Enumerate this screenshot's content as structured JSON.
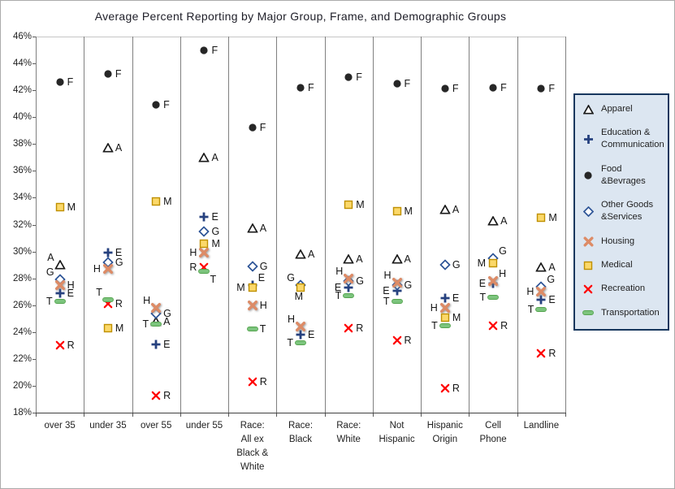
{
  "chart_data": {
    "type": "scatter",
    "title": "Average Percent Reporting by Major Group, Frame, and  Demographic Groups",
    "xlabel": "",
    "ylabel": "",
    "ylim": [
      18,
      46
    ],
    "ytick_step": 2,
    "ytick_suffix": "%",
    "ytick_labels": [
      "46%",
      "44%",
      "42%",
      "40%",
      "38%",
      "36%",
      "34%",
      "32%",
      "30%",
      "28%",
      "26%",
      "24%",
      "22%",
      "20%",
      "18%"
    ],
    "grid": "vertical category separators only",
    "legend_position": "right",
    "categories": [
      {
        "label": "over 35",
        "lines": [
          "over 35"
        ]
      },
      {
        "label": "under 35",
        "lines": [
          "under 35"
        ]
      },
      {
        "label": "over 55",
        "lines": [
          "over 55"
        ]
      },
      {
        "label": "under 55",
        "lines": [
          "under 55"
        ]
      },
      {
        "label": "Race: All ex Black & White",
        "lines": [
          "Race:",
          "All ex",
          "Black &",
          "White"
        ]
      },
      {
        "label": "Race: Black",
        "lines": [
          "Race:",
          "Black"
        ]
      },
      {
        "label": "Race: White",
        "lines": [
          "Race:",
          "White"
        ]
      },
      {
        "label": "Not Hispanic",
        "lines": [
          "Not",
          "Hispanic"
        ]
      },
      {
        "label": "Hispanic Origin",
        "lines": [
          "Hispanic",
          "Origin"
        ]
      },
      {
        "label": "Cell Phone",
        "lines": [
          "Cell",
          "Phone"
        ]
      },
      {
        "label": "Landline",
        "lines": [
          "Landline"
        ]
      }
    ],
    "series": [
      {
        "name": "Apparel",
        "letter": "A",
        "marker": "open-triangle",
        "color": "#1A1A1A",
        "fill": "#FFFFFF",
        "values": [
          29.0,
          37.7,
          24.8,
          37.0,
          31.7,
          29.8,
          29.4,
          29.4,
          33.1,
          32.3,
          28.8
        ],
        "label_sides": [
          "al",
          "r",
          "r",
          "r",
          "r",
          "r",
          "r",
          "r",
          "r",
          "r",
          "r"
        ]
      },
      {
        "name": "Education & Communication",
        "letter": "E",
        "marker": "plus",
        "color": "#26417F",
        "values": [
          26.9,
          29.9,
          23.1,
          32.6,
          27.5,
          23.8,
          27.3,
          27.1,
          26.5,
          27.6,
          26.4
        ],
        "label_sides": [
          "r",
          "r",
          "r",
          "r",
          "ar",
          "r",
          "l",
          "l",
          "r",
          "l",
          "r"
        ]
      },
      {
        "name": "Food &Bevrages",
        "letter": "F",
        "marker": "filled-circle",
        "color": "#262626",
        "values": [
          42.6,
          43.2,
          40.9,
          45.0,
          39.2,
          42.2,
          43.0,
          42.5,
          42.1,
          42.2,
          42.1
        ],
        "label_sides": [
          "r",
          "r",
          "r",
          "r",
          "r",
          "r",
          "r",
          "r",
          "r",
          "r",
          "r"
        ]
      },
      {
        "name": "Other Goods &Services",
        "letter": "G",
        "marker": "open-diamond",
        "color": "#2E5597",
        "fill": "#FFFFFF",
        "values": [
          27.9,
          29.2,
          25.4,
          31.5,
          28.9,
          27.5,
          27.8,
          27.5,
          29.0,
          29.5,
          27.4
        ],
        "label_sides": [
          "al",
          "r",
          "r",
          "r",
          "r",
          "al",
          "r",
          "r",
          "r",
          "ar",
          "ar"
        ]
      },
      {
        "name": "Housing",
        "letter": "H",
        "marker": "thick-x",
        "color": "#DD8B66",
        "values": [
          27.5,
          28.7,
          25.8,
          29.9,
          26.0,
          24.4,
          28.0,
          27.7,
          25.8,
          27.8,
          27.0
        ],
        "label_sides": [
          "r",
          "l",
          "al",
          "l",
          "r",
          "al",
          "al",
          "al",
          "l",
          "ar",
          "l"
        ]
      },
      {
        "name": "Medical",
        "letter": "M",
        "marker": "filled-square",
        "color": "#FBD86A",
        "stroke": "#BF9000",
        "values": [
          33.3,
          24.3,
          33.7,
          30.6,
          27.3,
          27.3,
          33.5,
          33.0,
          25.1,
          29.1,
          32.5
        ],
        "label_sides": [
          "r",
          "r",
          "r",
          "r",
          "l",
          "bl",
          "r",
          "r",
          "r",
          "l",
          "r"
        ]
      },
      {
        "name": "Recreation",
        "letter": "R",
        "marker": "thin-x",
        "color": "#FF0000",
        "values": [
          23.0,
          26.1,
          19.3,
          28.8,
          20.3,
          null,
          24.3,
          23.4,
          19.8,
          24.5,
          22.4
        ],
        "label_sides": [
          "r",
          "r",
          "r",
          "l",
          "r",
          null,
          "r",
          "r",
          "r",
          "r",
          "r"
        ]
      },
      {
        "name": "Transportation",
        "letter": "T",
        "marker": "dash",
        "color": "#7CC47D",
        "stroke": "#55A44F",
        "values": [
          26.3,
          26.4,
          24.6,
          28.5,
          24.2,
          23.2,
          26.7,
          26.3,
          24.5,
          26.6,
          25.7
        ],
        "label_sides": [
          "l",
          "al",
          "l",
          "br",
          "r",
          "l",
          "l",
          "l",
          "l",
          "l",
          "l"
        ]
      }
    ]
  }
}
